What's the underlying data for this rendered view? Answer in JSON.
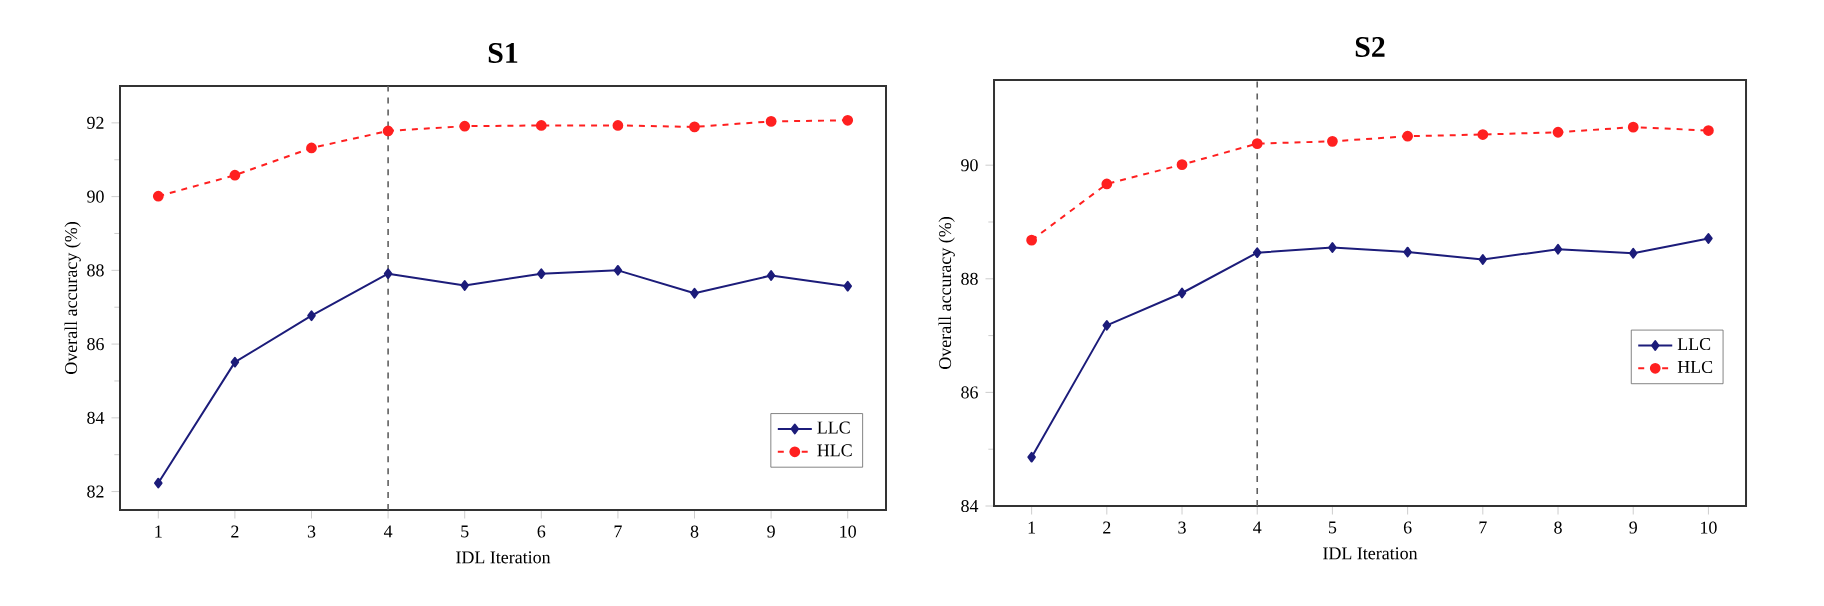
{
  "chart_data": [
    {
      "type": "line",
      "title": "S1",
      "xlabel": "IDL Iteration",
      "ylabel": "Overall accuracy (%)",
      "x": [
        1,
        2,
        3,
        4,
        5,
        6,
        7,
        8,
        9,
        10
      ],
      "series": [
        {
          "name": "LLC",
          "color": "#1c1c7a",
          "marker": "diamond",
          "line_style": "solid",
          "values": [
            82.23,
            85.51,
            86.77,
            87.91,
            87.59,
            87.91,
            88.0,
            87.38,
            87.86,
            87.57
          ]
        },
        {
          "name": "HLC",
          "color": "#ff2020",
          "marker": "circle",
          "line_style": "dashed",
          "values": [
            90.01,
            90.58,
            91.32,
            91.78,
            91.91,
            91.93,
            91.93,
            91.89,
            92.04,
            92.07
          ]
        }
      ],
      "xlim": [
        0.5,
        10.5
      ],
      "xticks": [
        1,
        2,
        3,
        4,
        5,
        6,
        7,
        8,
        9,
        10
      ],
      "ylim": [
        81.5,
        93
      ],
      "yticks": [
        82,
        84,
        86,
        88,
        90,
        92
      ],
      "ref_lines": [
        {
          "axis": "x",
          "value": 4,
          "color": "#606060",
          "line_style": "dashed"
        }
      ],
      "legend": "bottom right",
      "grid": false
    },
    {
      "type": "line",
      "title": "S2",
      "xlabel": "IDL Iteration",
      "ylabel": "Overall accuracy (%)",
      "x": [
        1,
        2,
        3,
        4,
        5,
        6,
        7,
        8,
        9,
        10
      ],
      "series": [
        {
          "name": "LLC",
          "color": "#1c1c7a",
          "marker": "diamond",
          "line_style": "solid",
          "values": [
            84.86,
            87.18,
            87.75,
            88.46,
            88.55,
            88.47,
            88.34,
            88.52,
            88.45,
            88.71
          ]
        },
        {
          "name": "HLC",
          "color": "#ff2020",
          "marker": "circle",
          "line_style": "dashed",
          "values": [
            88.68,
            89.67,
            90.01,
            90.38,
            90.42,
            90.51,
            90.54,
            90.58,
            90.67,
            90.61
          ]
        }
      ],
      "xlim": [
        0.5,
        10.5
      ],
      "xticks": [
        1,
        2,
        3,
        4,
        5,
        6,
        7,
        8,
        9,
        10
      ],
      "ylim": [
        84,
        91.5
      ],
      "yticks": [
        84,
        86,
        88,
        90
      ],
      "ref_lines": [
        {
          "axis": "x",
          "value": 4,
          "color": "#606060",
          "line_style": "dashed"
        }
      ],
      "legend": "right",
      "grid": false
    }
  ]
}
